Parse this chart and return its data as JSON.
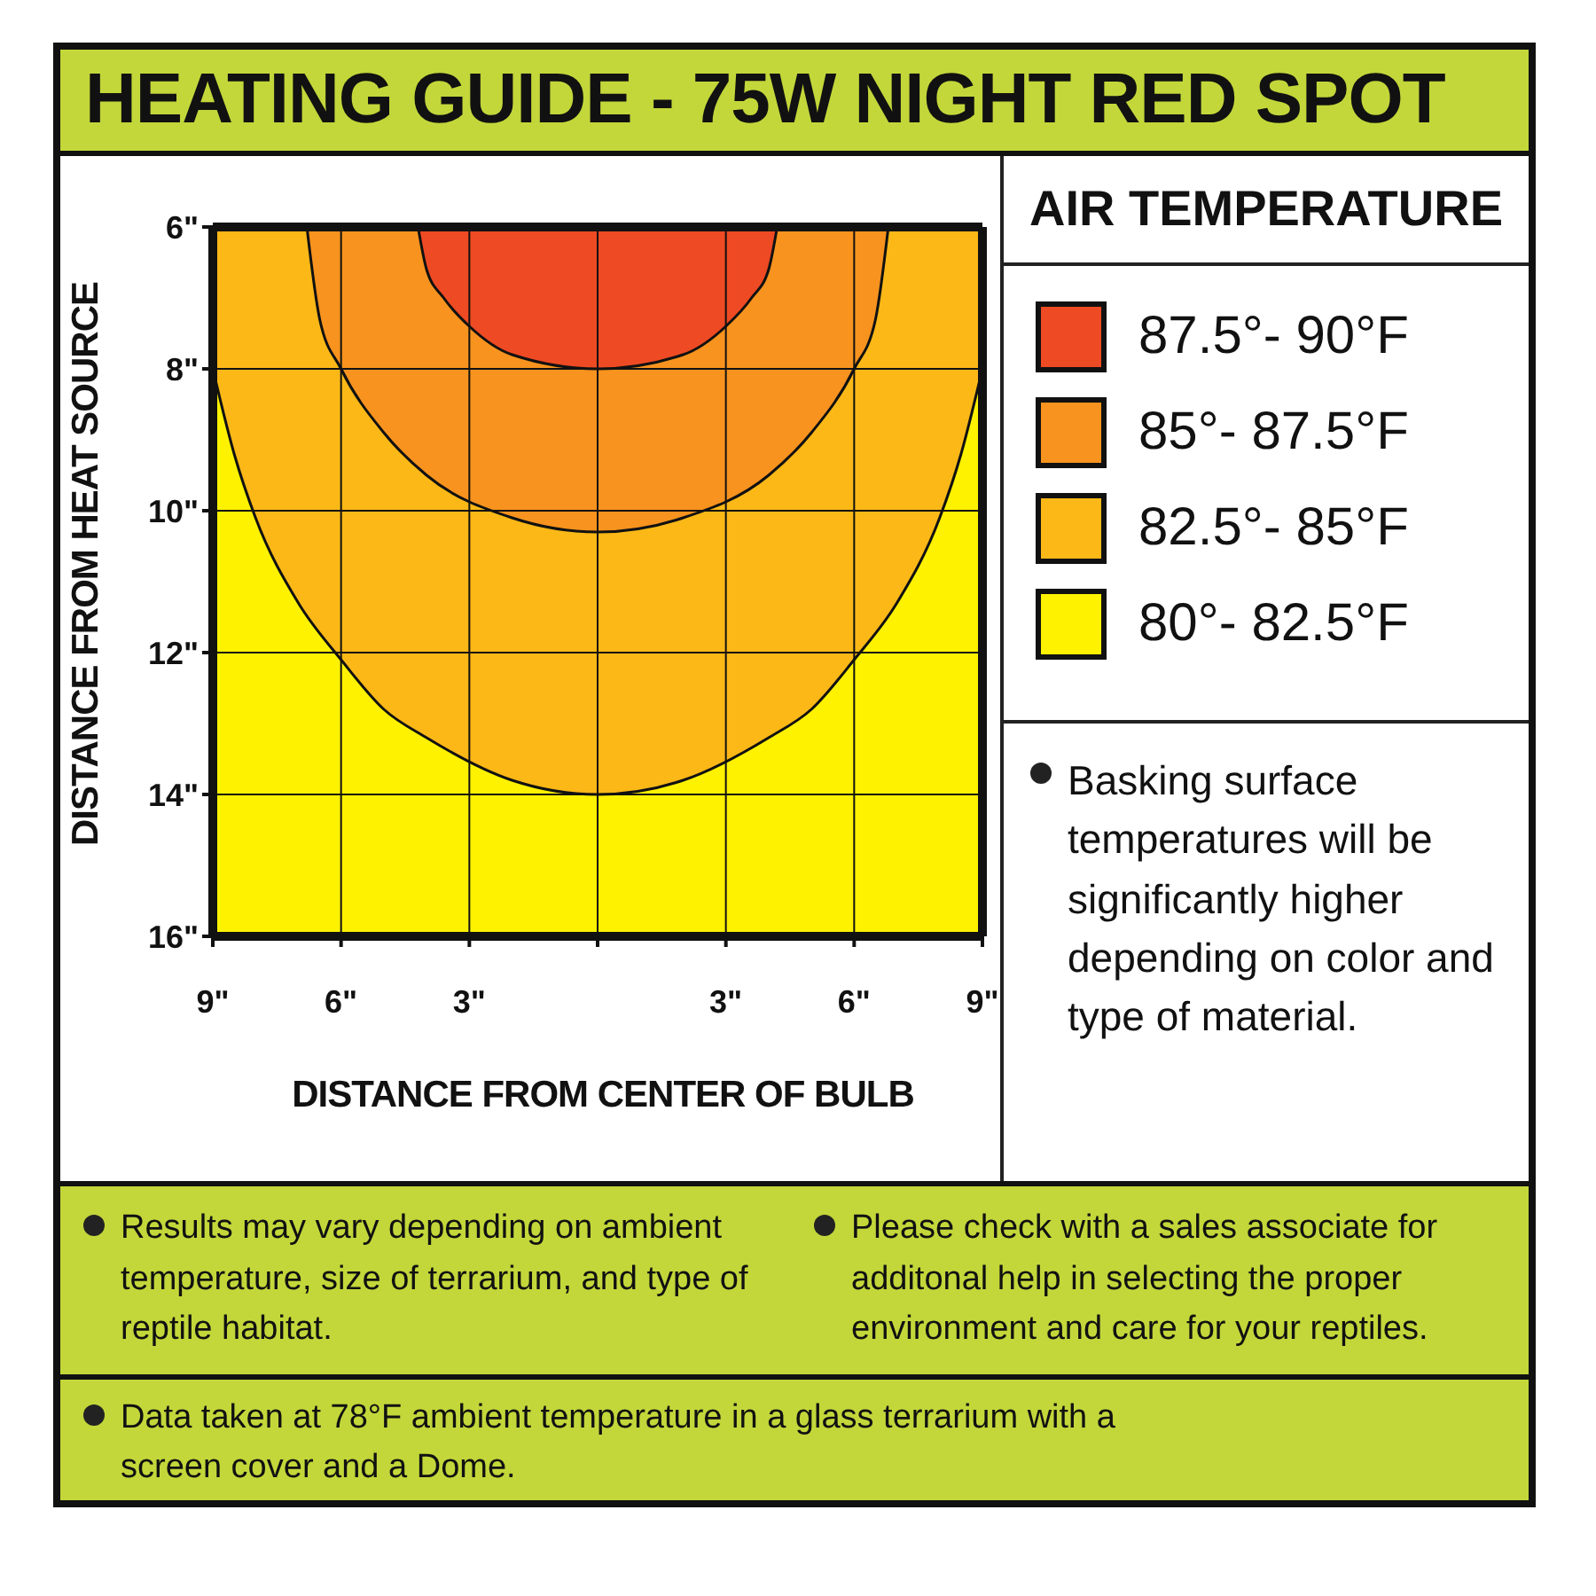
{
  "chart_data": {
    "type": "area",
    "title": "HEATING GUIDE - 75W NIGHT RED SPOT",
    "xlabel": "DISTANCE FROM CENTER OF BULB",
    "ylabel": "DISTANCE FROM HEAT SOURCE",
    "legend_title": "AIR TEMPERATURE",
    "legend": "right",
    "grid": true,
    "xlim": [
      -9,
      9
    ],
    "xticks": [
      {
        "value": -9,
        "label": "9\""
      },
      {
        "value": -6,
        "label": "6\""
      },
      {
        "value": -3,
        "label": "3\""
      },
      {
        "value": 0,
        "label": null
      },
      {
        "value": 3,
        "label": "3\""
      },
      {
        "value": 6,
        "label": "6\""
      },
      {
        "value": 9,
        "label": "9\""
      }
    ],
    "ylim": [
      16,
      6
    ],
    "yticks": [
      {
        "value": 6,
        "label": "6\""
      },
      {
        "value": 8,
        "label": "8\""
      },
      {
        "value": 10,
        "label": "10\""
      },
      {
        "value": 12,
        "label": "12\""
      },
      {
        "value": 14,
        "label": "14\""
      },
      {
        "value": 16,
        "label": "16\""
      }
    ],
    "series": [
      {
        "name": "80°- 82.5°F",
        "color": "#fff200",
        "x": [
          -9,
          9
        ],
        "values": [
          16,
          16
        ]
      },
      {
        "name": "82.5°- 85°F",
        "color": "#fbb817",
        "x": [
          -9,
          -8.5,
          -8,
          -7,
          -6,
          -5,
          -4,
          -2,
          0,
          2,
          4,
          5,
          6,
          7,
          8,
          8.5,
          9
        ],
        "values": [
          8,
          9.2,
          10.1,
          11.3,
          12.1,
          12.8,
          13.2,
          13.8,
          14,
          13.8,
          13.2,
          12.8,
          12.1,
          11.3,
          10.1,
          9.2,
          8
        ]
      },
      {
        "name": "85°- 87.5°F",
        "color": "#f7931e",
        "x": [
          -6.8,
          -6.5,
          -6,
          -5,
          -4,
          -2,
          0,
          2,
          4,
          5,
          6,
          6.5,
          6.8
        ],
        "values": [
          6,
          7.3,
          8,
          8.9,
          9.5,
          10.1,
          10.3,
          10.1,
          9.5,
          8.9,
          8,
          7.3,
          6
        ]
      },
      {
        "name": "87.5°- 90°F",
        "color": "#ee4a23",
        "x": [
          -4.2,
          -4,
          -3.6,
          -3,
          -2,
          0,
          2,
          3,
          3.6,
          4,
          4.2
        ],
        "values": [
          6,
          6.6,
          7,
          7.4,
          7.8,
          8,
          7.8,
          7.4,
          7,
          6.6,
          6
        ]
      }
    ],
    "annotations": [
      "Basking surface temperatures will be significantly higher depending on color and type of material.",
      "Results may vary depending on ambient temperature, size of terrarium, and type of reptile habitat.",
      "Please check with a sales associate for additonal help in selecting the proper environment and care for your reptiles.",
      "Data taken at 78°F ambient temperature in a glass terrarium with a screen cover and a Dome."
    ]
  }
}
